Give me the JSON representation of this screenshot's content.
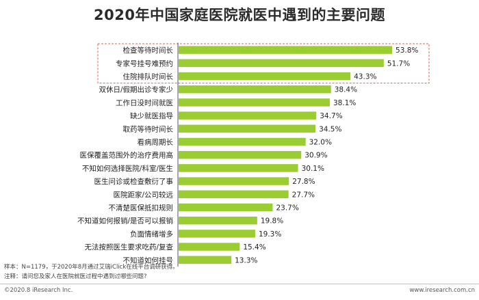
{
  "title": "2020年中国家庭医院就医中遇到的主要问题",
  "notes": {
    "sample": "样本：N=1179，于2020年8月通过艾瑞iClick在线平台调研获得。",
    "remark": "注释：请问您及家人在医院就医过程中遇到过哪些问题?"
  },
  "footer": {
    "left": "©2020.8 iResearch Inc.",
    "right": "www.iresearch.com.cn"
  },
  "colors": {
    "bar": "#9acd32",
    "highlight_box": "#e06060",
    "axis": "#555555"
  },
  "chart_data": {
    "type": "bar",
    "orientation": "horizontal",
    "categories": [
      "检查等待时间长",
      "专家号挂号难预约",
      "住院排队时间长",
      "双休日/假期出诊专家少",
      "工作日没时间就医",
      "缺少就医指导",
      "取药等待时间长",
      "看病周期长",
      "医保覆盖范围外的治疗费用高",
      "不知如何选择医院/科室/医生",
      "医生问诊或检查敷衍了事",
      "医院距家/公司较远",
      "不清楚医保抵扣规则",
      "不知道如何报销/是否可以报销",
      "负面情绪增多",
      "无法按照医生要求吃药/复查",
      "不知道如何挂号"
    ],
    "values": [
      53.8,
      51.7,
      43.3,
      38.4,
      38.1,
      34.7,
      34.5,
      32.0,
      30.9,
      30.1,
      27.8,
      27.7,
      23.7,
      19.8,
      19.3,
      15.4,
      13.3
    ],
    "labels": [
      "53.8%",
      "51.7%",
      "43.3%",
      "38.4%",
      "38.1%",
      "34.7%",
      "34.5%",
      "32.0%",
      "30.9%",
      "30.1%",
      "27.8%",
      "27.7%",
      "23.7%",
      "19.8%",
      "19.3%",
      "15.4%",
      "13.3%"
    ],
    "highlighted": [
      "检查等待时间长",
      "专家号挂号难预约",
      "住院排队时间长"
    ],
    "xlim": [
      0,
      60
    ],
    "grid": false,
    "legend": "none"
  }
}
